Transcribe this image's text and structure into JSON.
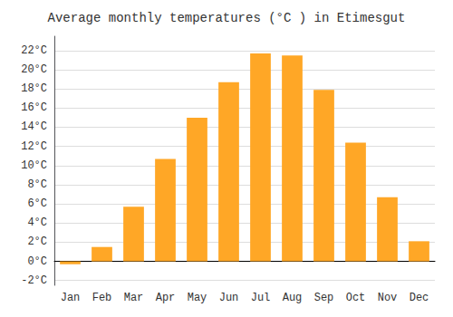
{
  "chart_data": {
    "type": "bar",
    "title": "Average monthly temperatures (°C ) in Etimesgut",
    "categories": [
      "Jan",
      "Feb",
      "Mar",
      "Apr",
      "May",
      "Jun",
      "Jul",
      "Aug",
      "Sep",
      "Oct",
      "Nov",
      "Dec"
    ],
    "values": [
      -0.3,
      1.5,
      5.7,
      10.7,
      15.0,
      18.7,
      21.7,
      21.5,
      17.9,
      12.4,
      6.7,
      2.1
    ],
    "color": "#FFA726",
    "ylim": [
      -2.5,
      23.5
    ],
    "yticks": [
      {
        "value": -2,
        "label": "-2°C"
      },
      {
        "value": 0,
        "label": "0°C"
      },
      {
        "value": 2,
        "label": "2°C"
      },
      {
        "value": 4,
        "label": "4°C"
      },
      {
        "value": 6,
        "label": "6°C"
      },
      {
        "value": 8,
        "label": "8°C"
      },
      {
        "value": 10,
        "label": "10°C"
      },
      {
        "value": 12,
        "label": "12°C"
      },
      {
        "value": 14,
        "label": "14°C"
      },
      {
        "value": 16,
        "label": "16°C"
      },
      {
        "value": 18,
        "label": "18°C"
      },
      {
        "value": 20,
        "label": "20°C"
      },
      {
        "value": 22,
        "label": "22°C"
      }
    ],
    "grid": true
  }
}
